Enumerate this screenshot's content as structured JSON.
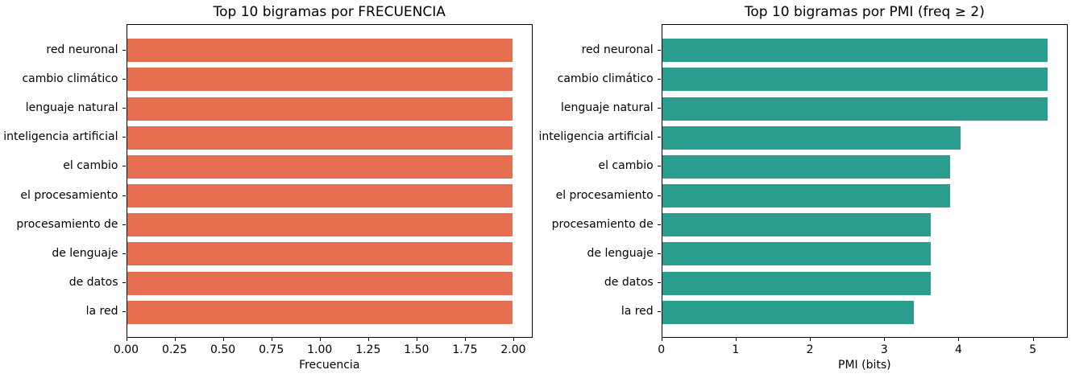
{
  "figure": {
    "background": "#ffffff",
    "text_color": "#000000",
    "spine_color": "#000000"
  },
  "chart_data": [
    {
      "type": "bar",
      "orientation": "horizontal",
      "title": "Top 10 bigramas por FRECUENCIA",
      "xlabel": "Frecuencia",
      "ylabel": "",
      "categories": [
        "red neuronal",
        "cambio climático",
        "lenguaje natural",
        "inteligencia artificial",
        "el cambio",
        "el procesamiento",
        "procesamiento de",
        "de lenguaje",
        "de datos",
        "la red"
      ],
      "values": [
        2.0,
        2.0,
        2.0,
        2.0,
        2.0,
        2.0,
        2.0,
        2.0,
        2.0,
        2.0
      ],
      "xlim": [
        0,
        2.1
      ],
      "xticks": [
        0,
        0.25,
        0.5,
        0.75,
        1.0,
        1.25,
        1.5,
        1.75,
        2.0
      ],
      "xtick_labels": [
        "0.00",
        "0.25",
        "0.50",
        "0.75",
        "1.00",
        "1.25",
        "1.50",
        "1.75",
        "2.00"
      ],
      "bar_color": "#e76f51",
      "bar_height_fraction": 0.8,
      "grid": false,
      "legend": false
    },
    {
      "type": "bar",
      "orientation": "horizontal",
      "title": "Top 10 bigramas por PMI (freq ≥ 2)",
      "xlabel": "PMI (bits)",
      "ylabel": "",
      "categories": [
        "red neuronal",
        "cambio climático",
        "lenguaje natural",
        "inteligencia artificial",
        "el cambio",
        "el procesamiento",
        "procesamiento de",
        "de lenguaje",
        "de datos",
        "la red"
      ],
      "values": [
        5.21,
        5.21,
        5.21,
        4.03,
        3.89,
        3.89,
        3.63,
        3.63,
        3.63,
        3.4
      ],
      "xlim": [
        0,
        5.47
      ],
      "xticks": [
        0,
        1,
        2,
        3,
        4,
        5
      ],
      "xtick_labels": [
        "0",
        "1",
        "2",
        "3",
        "4",
        "5"
      ],
      "bar_color": "#2a9d8f",
      "bar_height_fraction": 0.8,
      "grid": false,
      "legend": false
    }
  ]
}
